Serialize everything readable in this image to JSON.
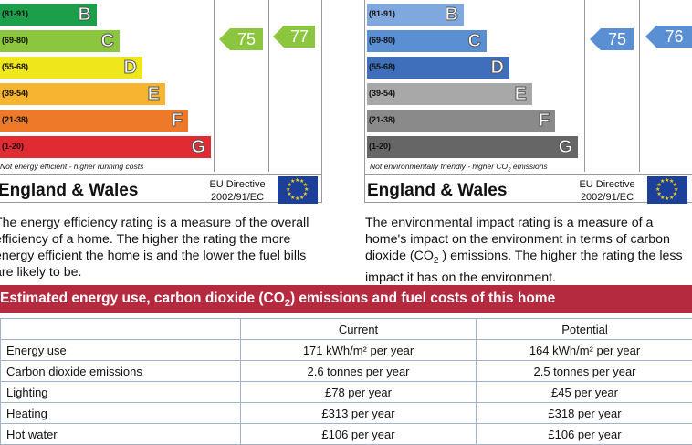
{
  "energy_chart": {
    "bands": [
      {
        "range": "(81-91)",
        "letter": "B",
        "color": "#1b9f4a"
      },
      {
        "range": "(69-80)",
        "letter": "C",
        "color": "#8cc63f"
      },
      {
        "range": "(55-68)",
        "letter": "D",
        "color": "#f0e61c"
      },
      {
        "range": "(39-54)",
        "letter": "E",
        "color": "#f6b431"
      },
      {
        "range": "(21-38)",
        "letter": "F",
        "color": "#ee7a29"
      },
      {
        "range": "(1-20)",
        "letter": "G",
        "color": "#e02b33"
      }
    ],
    "footnote": "Not energy efficient - higher running costs",
    "current": "75",
    "potential": "77",
    "rating_color": "#8cc63f",
    "region": "England & Wales",
    "directive_line1": "EU Directive",
    "directive_line2": "2002/91/EC",
    "description": "The energy efficiency rating is a measure of the overall efficiency of a home. The higher the rating the more energy efficient the home is and the lower the fuel bills are likely to be."
  },
  "environment_chart": {
    "bands": [
      {
        "range": "(81-91)",
        "letter": "B",
        "color": "#7ea8de"
      },
      {
        "range": "(69-80)",
        "letter": "C",
        "color": "#5b8fd3"
      },
      {
        "range": "(55-68)",
        "letter": "D",
        "color": "#3f6fba"
      },
      {
        "range": "(39-54)",
        "letter": "E",
        "color": "#a8a8a8"
      },
      {
        "range": "(21-38)",
        "letter": "F",
        "color": "#8a8a8a"
      },
      {
        "range": "(1-20)",
        "letter": "G",
        "color": "#666666"
      }
    ],
    "footnote_pre": "Not environmentally friendly - higher CO",
    "footnote_sub": "2",
    "footnote_post": " emissions",
    "current": "75",
    "potential": "76",
    "rating_color": "#5b8fd3",
    "region": "England & Wales",
    "directive_line1": "EU Directive",
    "directive_line2": "2002/91/EC",
    "description_pre": "The environmental impact rating is a measure of a home's impact on the environment in terms of carbon dioxide (CO",
    "description_sub": "2",
    "description_post": " ) emissions. The higher the rating the less impact it has on the environment."
  },
  "banner": {
    "pre": "Estimated energy use, carbon dioxide (CO",
    "sub": "2",
    "post": ") emissions and fuel costs of this home"
  },
  "costs_table": {
    "headers": [
      "",
      "Current",
      "Potential"
    ],
    "rows": [
      {
        "label": "Energy use",
        "current": "171 kWh/m² per year",
        "potential": "164 kWh/m² per year"
      },
      {
        "label": "Carbon dioxide emissions",
        "current": "2.6 tonnes per year",
        "potential": "2.5 tonnes per year"
      },
      {
        "label": "Lighting",
        "current": "£78 per year",
        "potential": "£45 per year"
      },
      {
        "label": "Heating",
        "current": "£313 per year",
        "potential": "£318 per year"
      },
      {
        "label": "Hot water",
        "current": "£106 per year",
        "potential": "£106 per year"
      }
    ]
  }
}
